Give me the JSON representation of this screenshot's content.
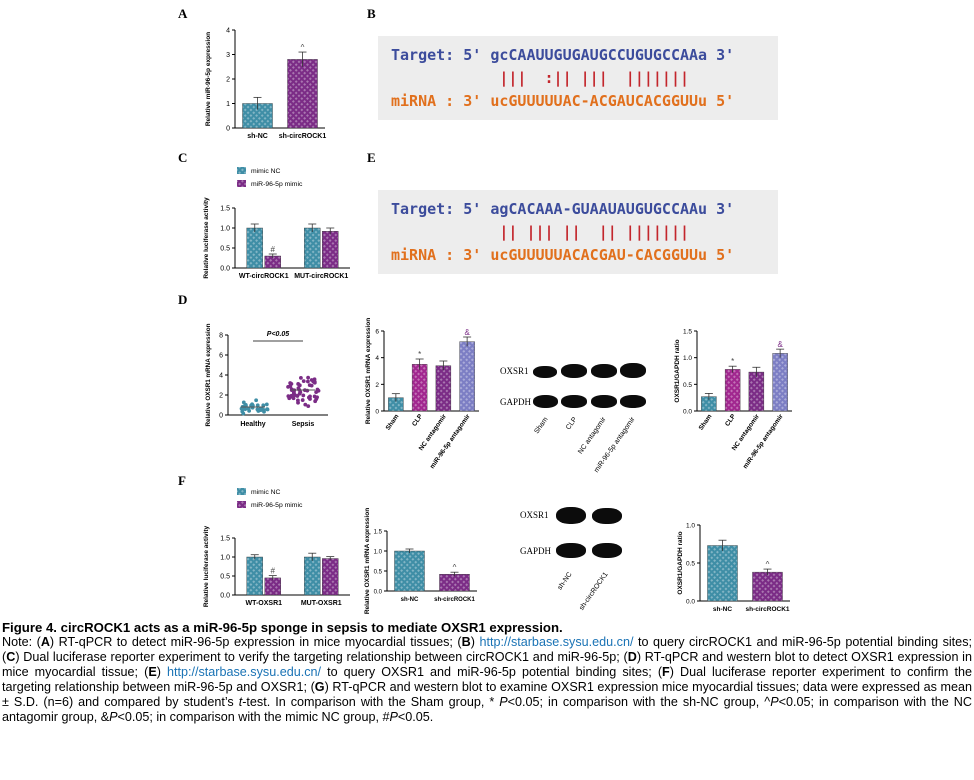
{
  "panels": {
    "A": "A",
    "B": "B",
    "C": "C",
    "D": "D",
    "E": "E",
    "F": "F"
  },
  "colors": {
    "teal": "#3f8ea6",
    "purple": "#7b2c86",
    "plum": "#a1278f",
    "lavender": "#7c7ec4",
    "seq_blue": "#3c4c9c",
    "seq_orange": "#e1701d",
    "seq_red": "#c3262c"
  },
  "sequence_B": {
    "target": "Target: 5' gcCAAUUGUGAUGCCUGUGCCAAa 3'",
    "bars": "            |||  :|| |||  |||||||",
    "mirna": "miRNA : 3' ucGUUUUUAC-ACGAUCACGGUUu 5'"
  },
  "sequence_E": {
    "target": "Target: 5' agCACAAA-GUAAUAUGUGCCAAu 3'",
    "bars": "            || ||| ||  || |||||||",
    "mirna": "miRNA : 3' ucGUUUUUACACGAU-CACGGUUu 5'"
  },
  "blots": {
    "D": {
      "rows": [
        "OXSR1",
        "GAPDH"
      ],
      "lanes": [
        "Sham",
        "CLP",
        "NC antagomir",
        "miR-96-5p antagomir"
      ]
    },
    "G": {
      "rows": [
        "OXSR1",
        "GAPDH"
      ],
      "lanes": [
        "sh-NC",
        "sh-circROCK1"
      ]
    }
  },
  "chart_data": [
    {
      "id": "A",
      "type": "bar",
      "categories": [
        "sh-NC",
        "sh-circROCK1"
      ],
      "values": [
        1.0,
        2.8
      ],
      "errors": [
        0.25,
        0.3
      ],
      "ylabel": "Relative miR-96-5p expression",
      "ylim": [
        0,
        4
      ],
      "yticks": [
        "0",
        "1",
        "2",
        "3",
        "4"
      ],
      "annotations": [
        "",
        "^"
      ],
      "colors": [
        "#3f8ea6",
        "#7b2c86"
      ]
    },
    {
      "id": "C",
      "type": "bar",
      "categories": [
        "WT-circROCK1",
        "MUT-circROCK1"
      ],
      "series": [
        {
          "name": "mimic NC",
          "values": [
            1.0,
            1.0
          ],
          "errors": [
            0.1,
            0.1
          ]
        },
        {
          "name": "miR-96-5p mimic",
          "values": [
            0.3,
            0.92
          ],
          "errors": [
            0.05,
            0.08
          ]
        }
      ],
      "ylabel": "Relative luciferase activity",
      "ylim": [
        0,
        1.5
      ],
      "yticks": [
        "0.0",
        "0.5",
        "1.0",
        "1.5"
      ],
      "annotations": [
        "#"
      ],
      "legend": "top-left"
    },
    {
      "id": "D1",
      "type": "scatter",
      "categories": [
        "Healthy",
        "Sepsis"
      ],
      "means": [
        0.8,
        2.5
      ],
      "ylabel": "Relative OXSR1 mRNA expression",
      "ylim": [
        0,
        8
      ],
      "yticks": [
        "0",
        "2",
        "4",
        "6",
        "8"
      ],
      "annotation": "P<0.05"
    },
    {
      "id": "D2",
      "type": "bar",
      "categories": [
        "Sham",
        "CLP",
        "NC antagomir",
        "miR-96-5p antagomir"
      ],
      "values": [
        1.0,
        3.5,
        3.4,
        5.2
      ],
      "errors": [
        0.3,
        0.4,
        0.35,
        0.35
      ],
      "ylabel": "Relative OXSR1 mRNA expression",
      "ylim": [
        0,
        6
      ],
      "yticks": [
        "0",
        "2",
        "4",
        "6"
      ],
      "annotations": [
        "",
        "*",
        "",
        "&"
      ]
    },
    {
      "id": "D3",
      "type": "bar",
      "categories": [
        "Sham",
        "CLP",
        "NC antagomir",
        "miR-96-5p antagomir"
      ],
      "values": [
        0.27,
        0.78,
        0.73,
        1.08
      ],
      "errors": [
        0.06,
        0.06,
        0.09,
        0.08
      ],
      "ylabel": "OXSR1/GAPDH ratio",
      "ylim": [
        0,
        1.5
      ],
      "yticks": [
        "0.0",
        "0.5",
        "1.0",
        "1.5"
      ],
      "annotations": [
        "",
        "*",
        "",
        "&"
      ]
    },
    {
      "id": "F",
      "type": "bar",
      "categories": [
        "WT-OXSR1",
        "MUT-OXSR1"
      ],
      "series": [
        {
          "name": "mimic NC",
          "values": [
            1.0,
            1.0
          ],
          "errors": [
            0.06,
            0.1
          ]
        },
        {
          "name": "miR-96-5p mimic",
          "values": [
            0.45,
            0.96
          ],
          "errors": [
            0.06,
            0.05
          ]
        }
      ],
      "ylabel": "Relative luciferase activity",
      "ylim": [
        0,
        1.5
      ],
      "yticks": [
        "0.0",
        "0.5",
        "1.0",
        "1.5"
      ],
      "annotations": [
        "#"
      ],
      "legend": "top-left"
    },
    {
      "id": "G1",
      "type": "bar",
      "categories": [
        "sh-NC",
        "sh-circROCK1"
      ],
      "values": [
        1.0,
        0.42
      ],
      "errors": [
        0.05,
        0.05
      ],
      "ylabel": "Relative OXSR1 mRNA expression",
      "ylim": [
        0,
        1.5
      ],
      "yticks": [
        "0.0",
        "0.5",
        "1.0",
        "1.5"
      ],
      "annotations": [
        "",
        "^"
      ]
    },
    {
      "id": "G2",
      "type": "bar",
      "categories": [
        "sh-NC",
        "sh-circROCK1"
      ],
      "values": [
        0.73,
        0.38
      ],
      "errors": [
        0.07,
        0.04
      ],
      "ylabel": "OXSR1/GAPDH ratio",
      "ylim": [
        0,
        1.0
      ],
      "yticks": [
        "0.0",
        "0.5",
        "1.0"
      ],
      "annotations": [
        "",
        "^"
      ]
    }
  ],
  "caption": {
    "title": "Figure 4. circROCK1 acts as a miR-96-5p sponge in sepsis to mediate OXSR1 expression.",
    "body_segments": [
      {
        "t": "Note: ("
      },
      {
        "t": "A",
        "b": true
      },
      {
        "t": ") RT-qPCR to detect miR-96-5p expression in mice myocardial tissues; ("
      },
      {
        "t": "B",
        "b": true
      },
      {
        "t": ") "
      },
      {
        "t": "http://starbase.sysu.edu.cn/",
        "link": true
      },
      {
        "t": " to query circROCK1 and miR-96-5p potential binding sites; ("
      },
      {
        "t": "C",
        "b": true
      },
      {
        "t": ") Dual luciferase reporter experiment to verify the targeting relationship between circROCK1 and miR-96-5p; ("
      },
      {
        "t": "D",
        "b": true
      },
      {
        "t": ") RT-qPCR and western blot to detect OXSR1 expression in mice myocardial tissue; ("
      },
      {
        "t": "E",
        "b": true
      },
      {
        "t": ") "
      },
      {
        "t": "http://starbase.sysu.edu.cn/",
        "link": true
      },
      {
        "t": " to query OXSR1 and miR-96-5p potential binding sites; ("
      },
      {
        "t": "F",
        "b": true
      },
      {
        "t": ") Dual luciferase reporter experiment to confirm the targeting relationship between miR-96-5p and OXSR1; ("
      },
      {
        "t": "G",
        "b": true
      },
      {
        "t": ") RT-qPCR and western blot to examine OXSR1 expression mice myocardial tissues; data were expressed as mean ± S.D. (n=6) and compared by student’s "
      },
      {
        "t": "t",
        "i": true
      },
      {
        "t": "-test. In comparison with the Sham group, * "
      },
      {
        "t": "P",
        "i": true
      },
      {
        "t": "<0.05; in comparison with the sh-NC group, ^"
      },
      {
        "t": "P",
        "i": true
      },
      {
        "t": "<0.05; in comparison with the NC antagomir group, &"
      },
      {
        "t": "P",
        "i": true
      },
      {
        "t": "<0.05; in comparison with the mimic NC group, #"
      },
      {
        "t": "P",
        "i": true
      },
      {
        "t": "<0.05."
      }
    ]
  }
}
